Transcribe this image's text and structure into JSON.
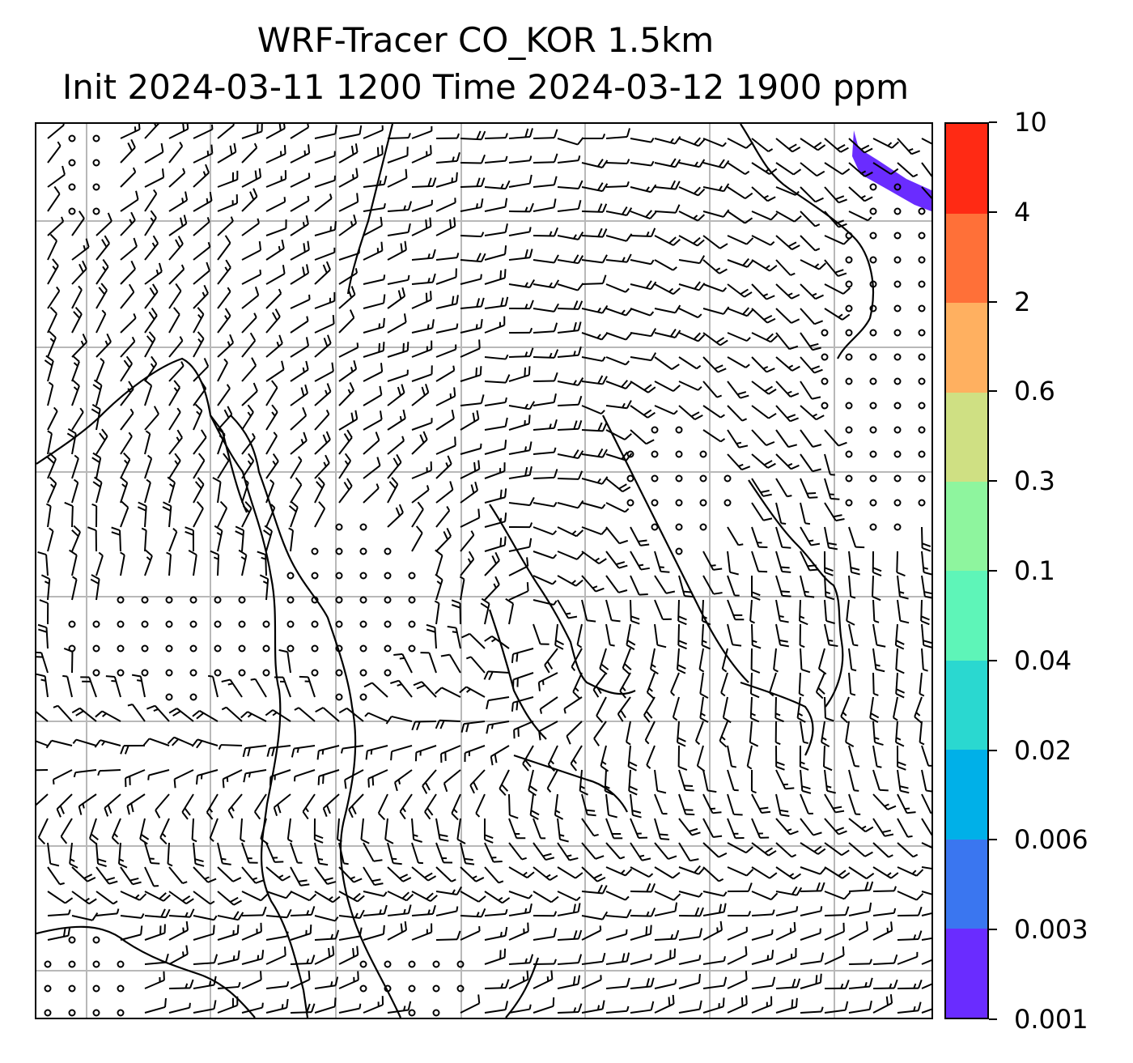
{
  "title": {
    "line1": "WRF-Tracer CO_KOR 1.5km",
    "line2": "Init 2024-03-11 1200 Time 2024-03-12 1900 ppm"
  },
  "colorbar": {
    "tick_labels": [
      "0.001",
      "0.003",
      "0.006",
      "0.02",
      "0.04",
      "0.1",
      "0.3",
      "0.6",
      "2",
      "4",
      "10"
    ],
    "colors": [
      "#6a2cff",
      "#3a76f0",
      "#00b0e8",
      "#2ad8d0",
      "#5ef5b8",
      "#8ef59e",
      "#cfe083",
      "#ffb060",
      "#ff7038",
      "#ff2a14"
    ]
  },
  "map": {
    "gridlines": true,
    "gridline_color": "#b8b8b8",
    "tracer_patch_color": "#6a2cff"
  }
}
